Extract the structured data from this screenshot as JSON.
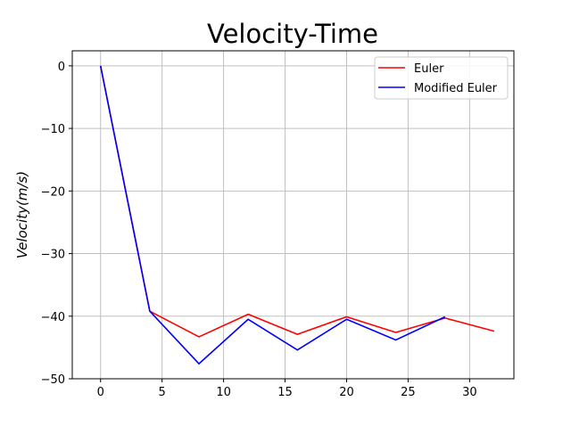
{
  "chart_data": {
    "type": "line",
    "title": "Velocity-Time",
    "xlabel": "",
    "ylabel": "Velocity(m/s)",
    "xlim": [
      -2.3,
      33.6
    ],
    "ylim": [
      -50,
      2.4
    ],
    "xticks": [
      0,
      5,
      10,
      15,
      20,
      25,
      30
    ],
    "yticks": [
      0,
      -10,
      -20,
      -30,
      -40,
      -50
    ],
    "ytick_labels": [
      "0",
      "−10",
      "−20",
      "−30",
      "−40",
      "−50"
    ],
    "grid": true,
    "legend_position": "top-right",
    "series": [
      {
        "name": "Euler",
        "color": "#ff0000",
        "x": [
          0,
          4,
          8,
          12,
          16,
          20,
          24,
          28,
          32
        ],
        "y": [
          0,
          -39.2,
          -43.3,
          -39.7,
          -42.9,
          -40.1,
          -42.6,
          -40.3,
          -42.4
        ]
      },
      {
        "name": "Modified Euler",
        "color": "#0000ff",
        "x": [
          0,
          4,
          8,
          12,
          16,
          20,
          24,
          28
        ],
        "y": [
          0,
          -39.2,
          -47.6,
          -40.5,
          -45.4,
          -40.5,
          -43.8,
          -40.1
        ]
      }
    ]
  }
}
